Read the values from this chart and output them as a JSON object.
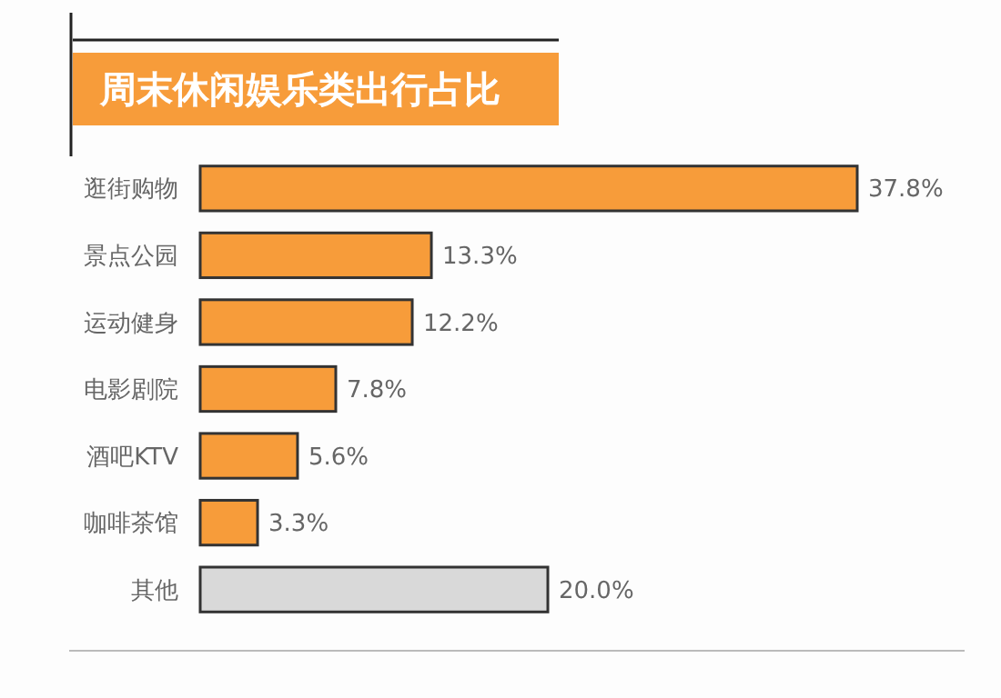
{
  "chart_data": {
    "type": "bar",
    "orientation": "horizontal",
    "relative": false,
    "title": "周末休闲娱乐类出行占比",
    "categories": [
      "逛街购物",
      "景点公园",
      "运动健身",
      "电影剧院",
      "酒吧KTV",
      "咖啡茶馆",
      "其他"
    ],
    "values": [
      37.8,
      13.3,
      12.2,
      7.8,
      5.6,
      3.3,
      20.0
    ],
    "colors": [
      "#f79c3a",
      "#f79c3a",
      "#f79c3a",
      "#f79c3a",
      "#f79c3a",
      "#f79c3a",
      "#d9d9d9"
    ],
    "xlim": [
      0,
      37.8
    ],
    "tick_labels": "y",
    "value_labels": [
      "37.8%",
      "13.3%",
      "12.2%",
      "7.8%",
      "5.6%",
      "3.3%",
      "20.0%"
    ]
  }
}
